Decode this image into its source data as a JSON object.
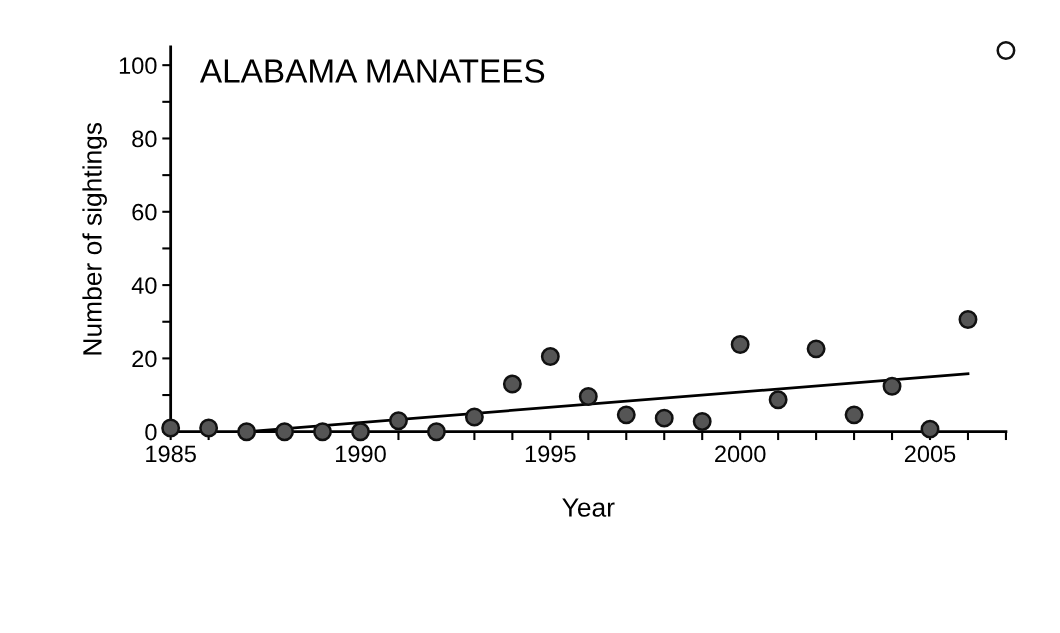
{
  "chart_data": {
    "type": "scatter",
    "title": "ALABAMA MANATEES",
    "xlabel": "Year",
    "ylabel": "Number of sightings",
    "xlim": [
      1985,
      2007
    ],
    "ylim": [
      0,
      105
    ],
    "xticks": [
      1985,
      {
        "value": 1986,
        "label": null
      },
      {
        "value": 1987,
        "label": null
      },
      {
        "value": 1988,
        "label": null
      },
      {
        "value": 1989,
        "label": null
      },
      1990,
      {
        "value": 1991,
        "label": null
      },
      {
        "value": 1992,
        "label": null
      },
      {
        "value": 1993,
        "label": null
      },
      {
        "value": 1994,
        "label": null
      },
      1995,
      {
        "value": 1996,
        "label": null
      },
      {
        "value": 1997,
        "label": null
      },
      {
        "value": 1998,
        "label": null
      },
      {
        "value": 1999,
        "label": null
      },
      2000,
      {
        "value": 2001,
        "label": null
      },
      {
        "value": 2002,
        "label": null
      },
      {
        "value": 2003,
        "label": null
      },
      {
        "value": 2004,
        "label": null
      },
      2005,
      {
        "value": 2006,
        "label": null
      },
      {
        "value": 2007,
        "label": null
      }
    ],
    "yticks": [
      0,
      {
        "value": 10,
        "label": null
      },
      20,
      {
        "value": 30,
        "label": null
      },
      40,
      {
        "value": 50,
        "label": null
      },
      60,
      {
        "value": 70,
        "label": null
      },
      80,
      {
        "value": 90,
        "label": null
      },
      100
    ],
    "grid": false,
    "legend": false,
    "series": [
      {
        "marker": "circle",
        "color": "#555555",
        "x": [
          1985,
          1986,
          1987,
          1988,
          1989,
          1990,
          1991,
          1992,
          1993,
          1994,
          1995,
          1996,
          1997,
          1998,
          1999,
          2000,
          2001,
          2002,
          2003,
          2004,
          2005,
          2006
        ],
        "values": [
          1,
          1,
          0,
          0,
          0,
          0,
          3,
          0,
          4,
          13,
          20.5,
          9.6,
          4.6,
          3.7,
          2.8,
          23.8,
          8.7,
          22.6,
          4.6,
          12.4,
          0.7,
          30.6
        ]
      },
      {
        "marker": "circle",
        "color": "#ffffff",
        "x": [
          2007
        ],
        "values": [
          104
        ]
      },
      {
        "type": "line",
        "marker": "none",
        "color": "#000000",
        "line_style": "solid",
        "x": [
          1987,
          2006
        ],
        "values": [
          0,
          15.8
        ]
      }
    ]
  }
}
